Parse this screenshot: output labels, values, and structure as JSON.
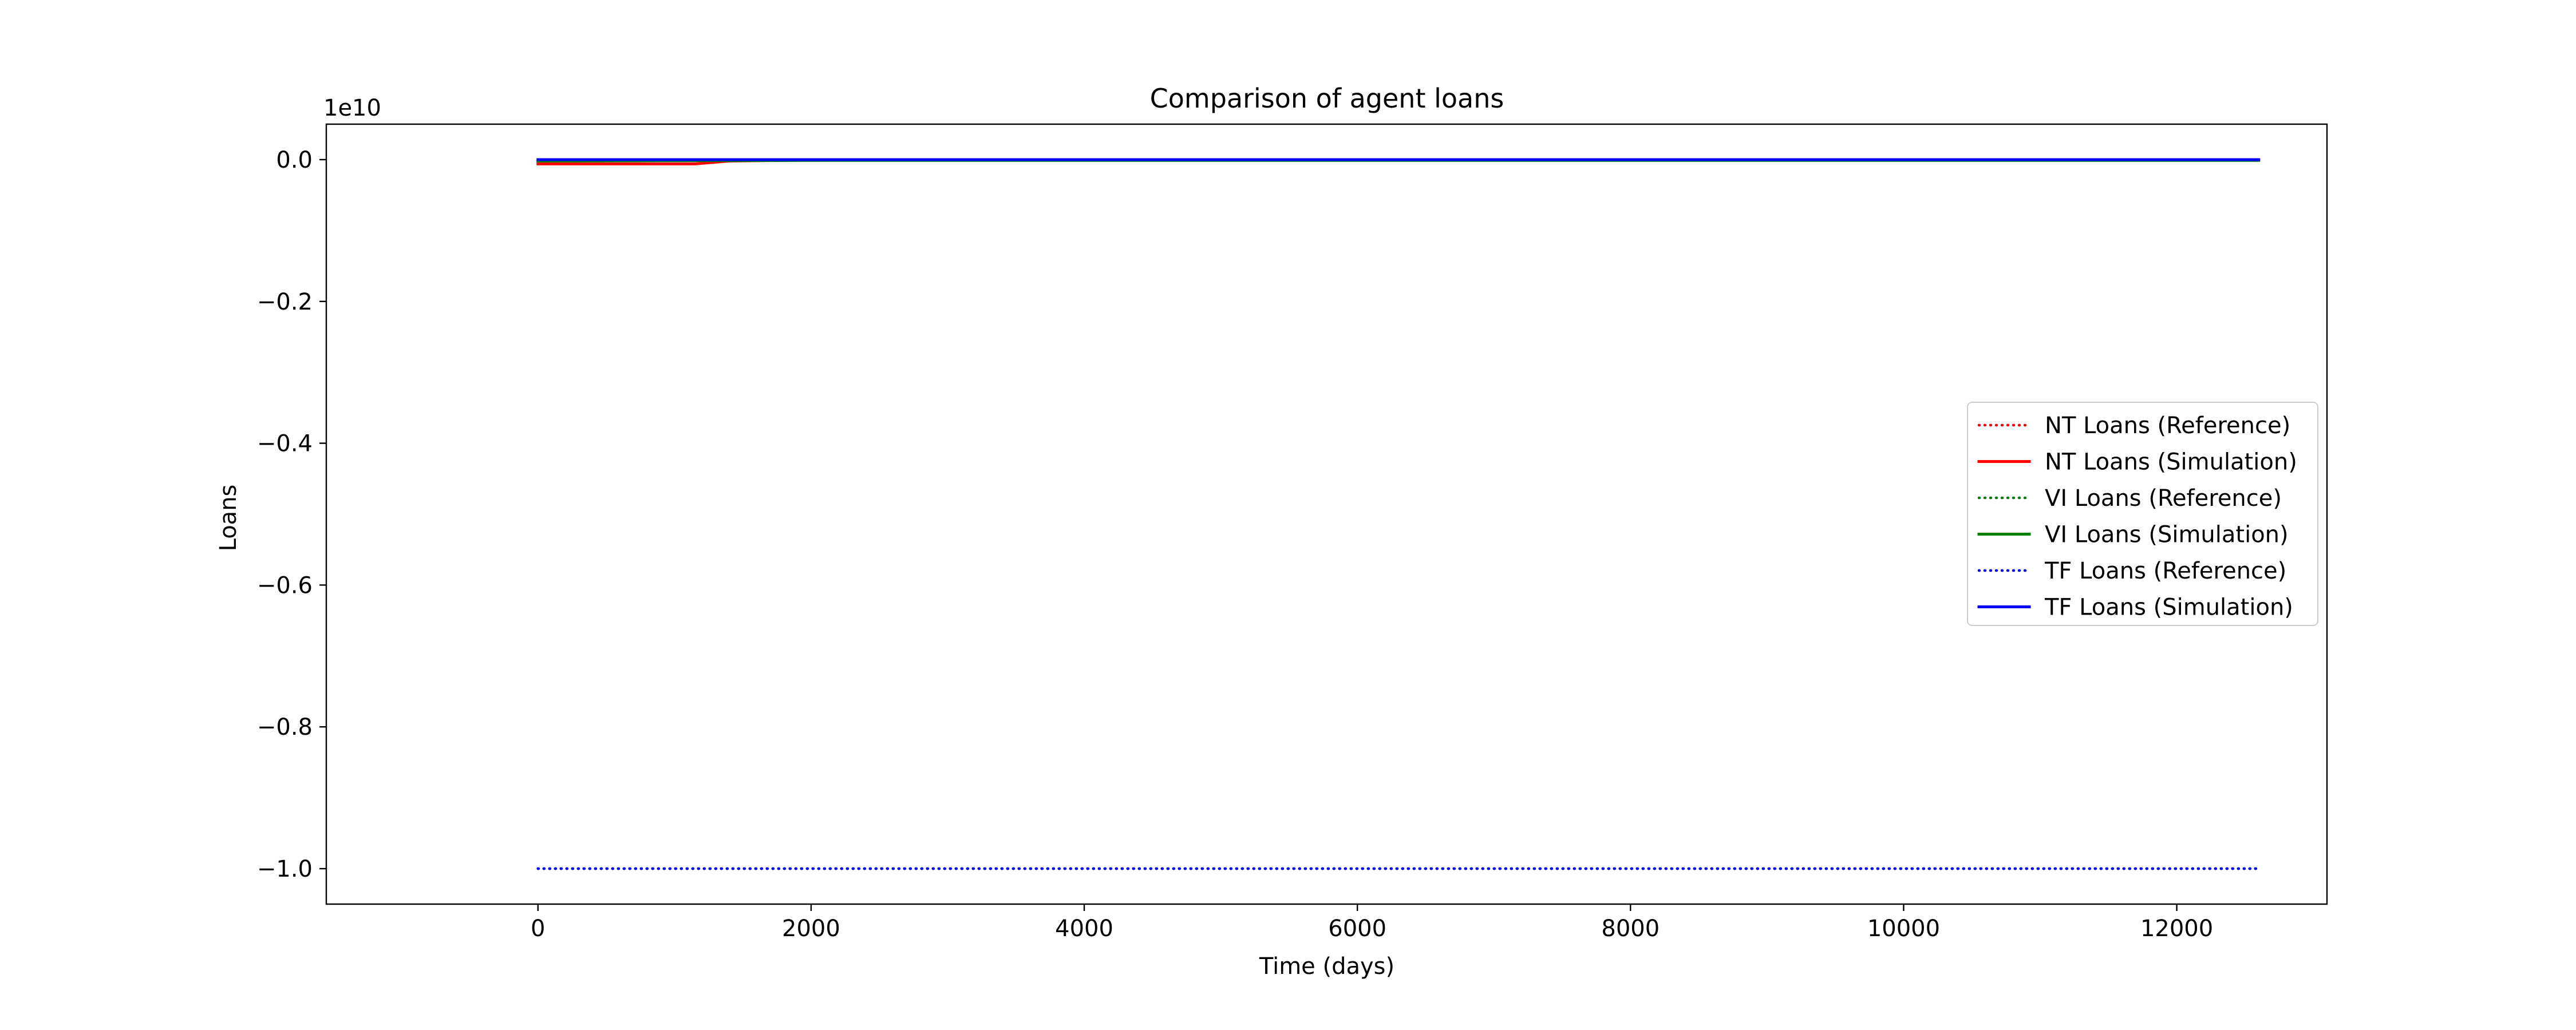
{
  "chart_data": {
    "type": "line",
    "title": "Comparison of agent loans",
    "xlabel": "Time (days)",
    "ylabel": "Loans",
    "offset_text": "1e10",
    "xlim": [
      -1550,
      13100
    ],
    "ylim": [
      -1.05,
      0.05
    ],
    "xticks": [
      0,
      2000,
      4000,
      6000,
      8000,
      10000,
      12000
    ],
    "xtick_labels": [
      "0",
      "2000",
      "4000",
      "6000",
      "8000",
      "10000",
      "12000"
    ],
    "yticks": [
      0.0,
      -0.2,
      -0.4,
      -0.6,
      -0.8,
      -1.0
    ],
    "ytick_labels": [
      "0.0",
      "−0.2",
      "−0.4",
      "−0.6",
      "−0.8",
      "−1.0"
    ],
    "grid": false,
    "legend_position": "center-right",
    "series": [
      {
        "name": "NT Loans (Reference)",
        "color": "#ff0000",
        "style": "dotted",
        "x": [
          0,
          12600
        ],
        "y": [
          -1.0,
          -1.0
        ]
      },
      {
        "name": "NT Loans (Simulation)",
        "color": "#ff0000",
        "style": "solid",
        "x": [
          0,
          1150,
          1400,
          2300,
          12600
        ],
        "y": [
          -0.006,
          -0.006,
          -0.002,
          0.0,
          0.0
        ]
      },
      {
        "name": "VI Loans (Reference)",
        "color": "#008000",
        "style": "dotted",
        "x": [
          0,
          12600
        ],
        "y": [
          -1.0,
          -1.0
        ]
      },
      {
        "name": "VI Loans (Simulation)",
        "color": "#008000",
        "style": "solid",
        "x": [
          0,
          2200,
          12600
        ],
        "y": [
          -0.002,
          -0.001,
          -0.001
        ]
      },
      {
        "name": "TF Loans (Reference)",
        "color": "#0000ff",
        "style": "dotted",
        "x": [
          0,
          12600
        ],
        "y": [
          -1.0,
          -1.0
        ]
      },
      {
        "name": "TF Loans (Simulation)",
        "color": "#0000ff",
        "style": "solid",
        "x": [
          0,
          12600
        ],
        "y": [
          0.0,
          0.0
        ]
      }
    ]
  }
}
